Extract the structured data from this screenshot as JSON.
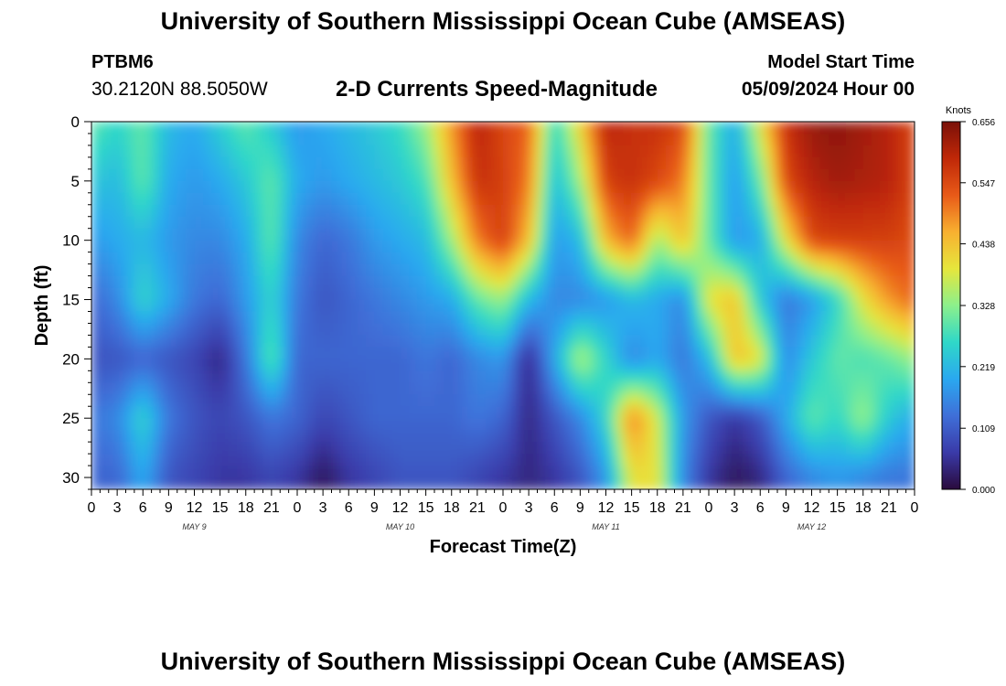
{
  "header": {
    "title": "University of Southern Mississippi Ocean Cube (AMSEAS)",
    "station_id": "PTBM6",
    "coordinates": "30.2120N  88.5050W",
    "variable": "2-D Currents Speed-Magnitude",
    "model_start_label": "Model Start Time",
    "model_start_value": "05/09/2024 Hour 00"
  },
  "footer": {
    "title": "University of Southern Mississippi Ocean Cube (AMSEAS)"
  },
  "chart_data": {
    "type": "heatmap",
    "xlabel": "Forecast Time(Z)",
    "ylabel": "Depth (ft)",
    "x_tick_labels": [
      "0",
      "3",
      "6",
      "9",
      "12",
      "15",
      "18",
      "21",
      "0",
      "3",
      "6",
      "9",
      "12",
      "15",
      "18",
      "21",
      "0",
      "3",
      "6",
      "9",
      "12",
      "15",
      "18",
      "21",
      "0",
      "3",
      "6",
      "9",
      "12",
      "15",
      "18",
      "21",
      "0"
    ],
    "day_labels": [
      "MAY 9",
      "MAY 10",
      "MAY 11",
      "MAY 12"
    ],
    "x_hours": [
      0,
      96
    ],
    "y_ticks": [
      0,
      5,
      10,
      15,
      20,
      25,
      30
    ],
    "ylim": [
      0,
      31
    ],
    "colorbar": {
      "unit": "Knots",
      "min": 0.0,
      "max": 0.656,
      "tick_labels": [
        "0.656",
        "0.547",
        "0.438",
        "0.328",
        "0.219",
        "0.109",
        "0.000"
      ],
      "tick_values": [
        0.656,
        0.547,
        0.438,
        0.328,
        0.219,
        0.109,
        0.0
      ],
      "colors": [
        "#2a0a3c",
        "#3a3aa8",
        "#3f6fd8",
        "#2aa8f0",
        "#2fd8c8",
        "#8cf08c",
        "#e6e63c",
        "#f8b030",
        "#e85a18",
        "#c02808",
        "#7a1008"
      ]
    },
    "depths_ft": [
      0,
      5,
      10,
      15,
      20,
      25,
      30
    ],
    "hours": [
      0,
      3,
      6,
      9,
      12,
      15,
      18,
      21,
      24,
      27,
      30,
      33,
      36,
      39,
      42,
      45,
      48,
      51,
      54,
      57,
      60,
      63,
      66,
      69,
      72,
      75,
      78,
      81,
      84,
      87,
      90,
      93,
      96
    ],
    "values": [
      [
        0.3,
        0.26,
        0.3,
        0.22,
        0.2,
        0.25,
        0.3,
        0.24,
        0.18,
        0.2,
        0.22,
        0.24,
        0.27,
        0.34,
        0.48,
        0.6,
        0.55,
        0.52,
        0.26,
        0.42,
        0.6,
        0.58,
        0.58,
        0.55,
        0.3,
        0.2,
        0.4,
        0.58,
        0.63,
        0.64,
        0.62,
        0.6,
        0.55
      ],
      [
        0.24,
        0.22,
        0.3,
        0.2,
        0.18,
        0.2,
        0.24,
        0.3,
        0.2,
        0.18,
        0.2,
        0.22,
        0.24,
        0.28,
        0.44,
        0.58,
        0.56,
        0.5,
        0.22,
        0.34,
        0.56,
        0.58,
        0.55,
        0.5,
        0.3,
        0.18,
        0.3,
        0.55,
        0.6,
        0.62,
        0.61,
        0.6,
        0.55
      ],
      [
        0.18,
        0.2,
        0.22,
        0.18,
        0.16,
        0.16,
        0.2,
        0.3,
        0.16,
        0.12,
        0.14,
        0.18,
        0.2,
        0.22,
        0.34,
        0.5,
        0.56,
        0.44,
        0.18,
        0.22,
        0.45,
        0.52,
        0.34,
        0.44,
        0.3,
        0.18,
        0.2,
        0.4,
        0.55,
        0.56,
        0.56,
        0.56,
        0.54
      ],
      [
        0.12,
        0.16,
        0.26,
        0.2,
        0.14,
        0.12,
        0.18,
        0.26,
        0.14,
        0.1,
        0.12,
        0.14,
        0.16,
        0.18,
        0.2,
        0.3,
        0.34,
        0.22,
        0.16,
        0.16,
        0.18,
        0.22,
        0.2,
        0.16,
        0.4,
        0.44,
        0.24,
        0.14,
        0.18,
        0.26,
        0.4,
        0.48,
        0.52
      ],
      [
        0.1,
        0.1,
        0.12,
        0.1,
        0.08,
        0.04,
        0.14,
        0.3,
        0.12,
        0.12,
        0.12,
        0.12,
        0.12,
        0.14,
        0.12,
        0.16,
        0.18,
        0.04,
        0.2,
        0.36,
        0.26,
        0.16,
        0.2,
        0.14,
        0.22,
        0.44,
        0.4,
        0.16,
        0.24,
        0.3,
        0.28,
        0.3,
        0.34
      ],
      [
        0.14,
        0.16,
        0.26,
        0.14,
        0.1,
        0.08,
        0.1,
        0.14,
        0.12,
        0.08,
        0.1,
        0.12,
        0.12,
        0.12,
        0.12,
        0.14,
        0.12,
        0.04,
        0.1,
        0.16,
        0.26,
        0.5,
        0.38,
        0.18,
        0.1,
        0.06,
        0.1,
        0.2,
        0.3,
        0.26,
        0.34,
        0.24,
        0.2
      ],
      [
        0.12,
        0.12,
        0.2,
        0.1,
        0.08,
        0.06,
        0.06,
        0.08,
        0.06,
        0.02,
        0.06,
        0.08,
        0.1,
        0.1,
        0.1,
        0.08,
        0.06,
        0.04,
        0.06,
        0.1,
        0.18,
        0.4,
        0.4,
        0.16,
        0.06,
        0.02,
        0.04,
        0.12,
        0.16,
        0.18,
        0.16,
        0.14,
        0.14
      ]
    ]
  }
}
